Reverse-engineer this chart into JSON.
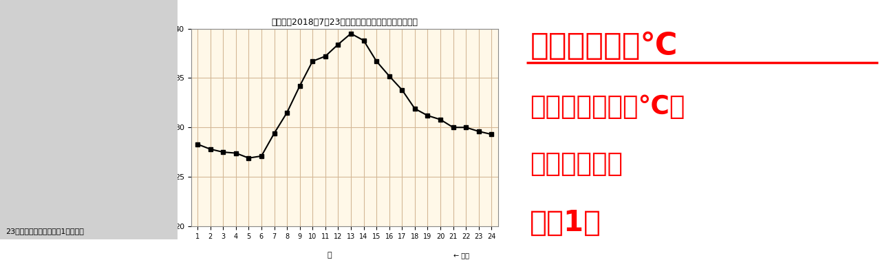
{
  "title": "青梅　　2018年7月23日　　（１時間ごとの値）　気温",
  "xlabel_left": "時",
  "xlabel_right": "← 気温",
  "ylabel": "℃",
  "hours": [
    1,
    2,
    3,
    4,
    5,
    6,
    7,
    8,
    9,
    10,
    11,
    12,
    13,
    14,
    15,
    16,
    17,
    18,
    19,
    20,
    21,
    22,
    23,
    24
  ],
  "temps": [
    28.3,
    27.8,
    27.5,
    27.4,
    26.9,
    27.1,
    29.4,
    31.5,
    34.2,
    36.7,
    37.2,
    38.4,
    39.5,
    38.8,
    36.7,
    35.2,
    33.8,
    31.9,
    31.2,
    30.8,
    30.0,
    30.0,
    29.6,
    29.3
  ],
  "ylim": [
    20,
    40
  ],
  "yticks": [
    20,
    25,
    30,
    35,
    40
  ],
  "bg_color": "#ffffff",
  "plot_bg_color": "#fff8e8",
  "grid_color": "#d4b896",
  "line_color": "#000000",
  "text_line1": "熊谷　４１１℃",
  "text_line2": "（青梅　４０８℃）",
  "text_line3": "最高気温記録",
  "text_line4": "歴代1位",
  "text_color": "#ff0000",
  "map_placeholder_color": "#cccccc",
  "bottom_text": "23日（月）最高気温史上1位熊谷で",
  "bottom_text_color": "#000000"
}
